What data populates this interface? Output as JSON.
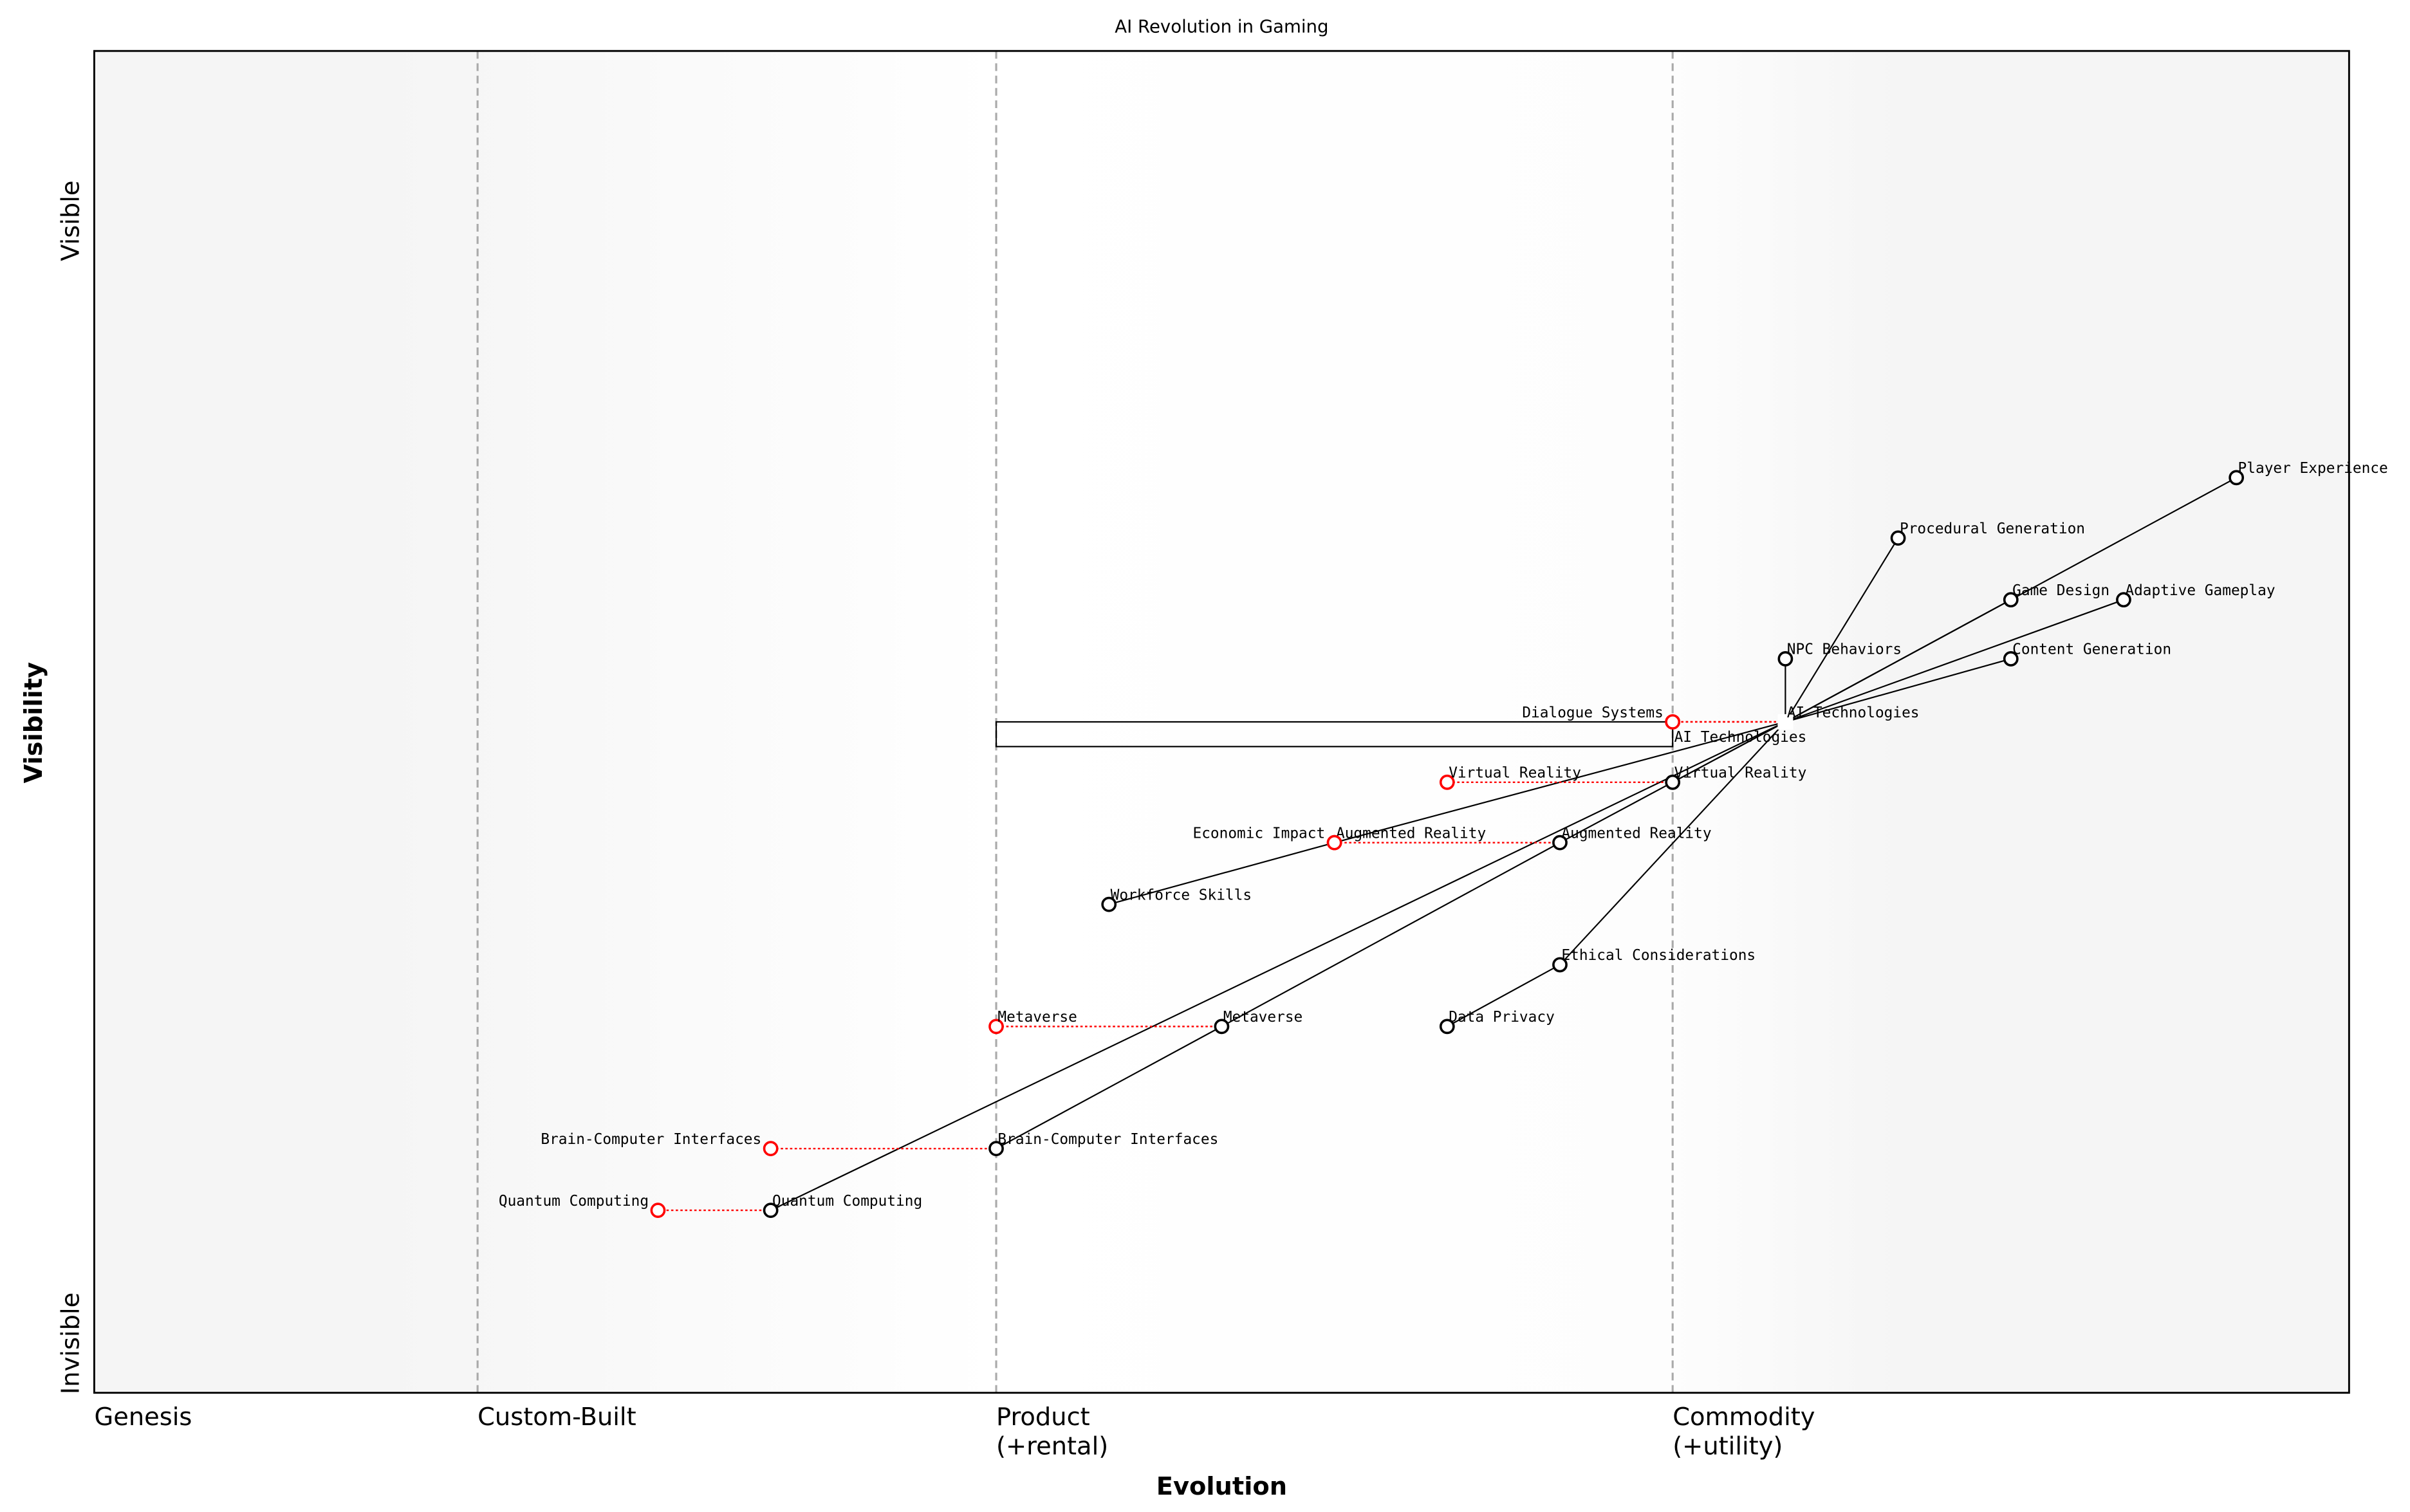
{
  "chart_data": {
    "type": "wardley-map",
    "title": "AI Revolution in Gaming",
    "xlabel": "Evolution",
    "ylabel": "Visibility",
    "y_ticks": {
      "top": "Visible",
      "bottom": "Invisible"
    },
    "stages": [
      {
        "label": "Genesis",
        "x": 0.0
      },
      {
        "label": "Custom-Built",
        "x": 0.17
      },
      {
        "label": "Product\n(+rental)",
        "x": 0.4
      },
      {
        "label": "Commodity\n(+utility)",
        "x": 0.7
      }
    ],
    "xlim": [
      0,
      1
    ],
    "ylim": [
      0,
      1
    ],
    "components": [
      {
        "name": "AI Technologies",
        "x": 0.75,
        "y": 0.5,
        "marker": "square"
      },
      {
        "name": "Player Experience",
        "x": 0.95,
        "y": 0.682
      },
      {
        "name": "Procedural Generation",
        "x": 0.8,
        "y": 0.637
      },
      {
        "name": "Game Design",
        "x": 0.85,
        "y": 0.591
      },
      {
        "name": "Adaptive Gameplay",
        "x": 0.9,
        "y": 0.591
      },
      {
        "name": "NPC Behaviors",
        "x": 0.75,
        "y": 0.547
      },
      {
        "name": "Content Generation",
        "x": 0.85,
        "y": 0.547
      },
      {
        "name": "Virtual Reality",
        "x": 0.7,
        "y": 0.455
      },
      {
        "name": "Augmented Reality",
        "x": 0.65,
        "y": 0.41
      },
      {
        "name": "Workforce Skills",
        "x": 0.45,
        "y": 0.364
      },
      {
        "name": "Ethical Considerations",
        "x": 0.65,
        "y": 0.319
      },
      {
        "name": "Data Privacy",
        "x": 0.6,
        "y": 0.273
      },
      {
        "name": "Metaverse",
        "x": 0.5,
        "y": 0.273
      },
      {
        "name": "Brain-Computer Interfaces",
        "x": 0.4,
        "y": 0.182
      },
      {
        "name": "Quantum Computing",
        "x": 0.3,
        "y": 0.136
      }
    ],
    "evolved": [
      {
        "name": "AI Technologies",
        "x": 0.7,
        "y": 0.5,
        "from_x": 0.75
      },
      {
        "name": "Dialogue Systems",
        "x": 0.7,
        "y": 0.5,
        "from_x": 0.75
      },
      {
        "name": "Virtual Reality",
        "x": 0.6,
        "y": 0.455,
        "from_x": 0.7
      },
      {
        "name": "Augmented Reality",
        "x": 0.55,
        "y": 0.41,
        "from_x": 0.65
      },
      {
        "name": "Economic Impact",
        "x": 0.55,
        "y": 0.41,
        "from_x": 0.55
      },
      {
        "name": "Metaverse",
        "x": 0.4,
        "y": 0.273,
        "from_x": 0.5
      },
      {
        "name": "Brain-Computer Interfaces",
        "x": 0.3,
        "y": 0.182,
        "from_x": 0.4
      },
      {
        "name": "Quantum Computing",
        "x": 0.25,
        "y": 0.136,
        "from_x": 0.3
      }
    ],
    "links": [
      [
        "AI Technologies",
        "Player Experience"
      ],
      [
        "AI Technologies",
        "Procedural Generation"
      ],
      [
        "AI Technologies",
        "Game Design"
      ],
      [
        "AI Technologies",
        "Adaptive Gameplay"
      ],
      [
        "AI Technologies",
        "NPC Behaviors"
      ],
      [
        "AI Technologies",
        "Content Generation"
      ],
      [
        "AI Technologies",
        "Virtual Reality"
      ],
      [
        "AI Technologies",
        "Augmented Reality"
      ],
      [
        "AI Technologies",
        "Economic Impact"
      ],
      [
        "AI Technologies",
        "Ethical Considerations"
      ],
      [
        "AI Technologies",
        "Quantum Computing"
      ],
      [
        "Augmented Reality",
        "Metaverse"
      ],
      [
        "Metaverse",
        "Brain-Computer Interfaces"
      ],
      [
        "Economic Impact",
        "Workforce Skills"
      ],
      [
        "Ethical Considerations",
        "Data Privacy"
      ]
    ],
    "pipeline": {
      "x_start": 0.4,
      "x_end": 0.7,
      "y": 0.5
    },
    "colors": {
      "component": "#000000",
      "evolved": "#ff0000",
      "stage_line": "#aaaaaa",
      "edge_background": "#f5f5f5"
    }
  }
}
